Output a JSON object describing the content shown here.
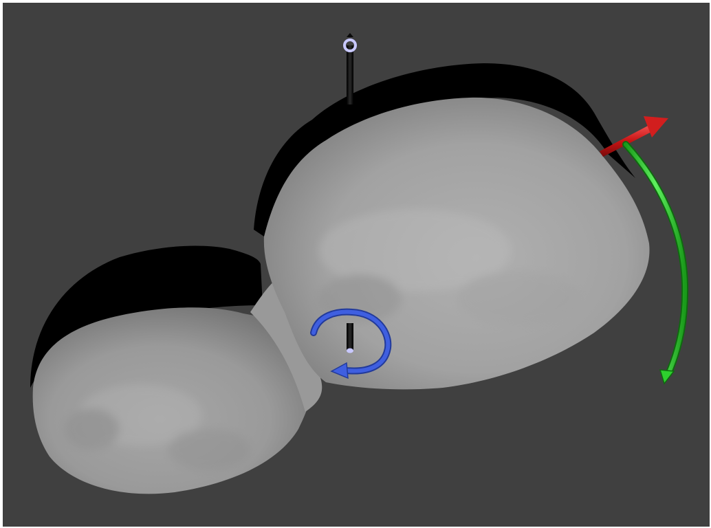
{
  "viewport": {
    "background_color": "#404040",
    "border_color": "#ffffff"
  },
  "object": {
    "kind": "contact-binary asteroid 3D model",
    "surface_color": "#a8a8a8",
    "shadow_color": "#000000"
  },
  "gizmos": {
    "spin_axis": {
      "icon": "axis-rod-icon",
      "color": "#0a0a0a",
      "cap_color": "#c8c8ff"
    },
    "rotation_arrow": {
      "icon": "circular-arrow-icon",
      "color": "#3f5fe0"
    },
    "center_axis": {
      "icon": "axis-rod-icon",
      "color": "#0a0a0a",
      "cap_color": "#c8c8ff"
    },
    "x_axis_arrow": {
      "icon": "arrow-icon",
      "color": "#d21e1e"
    },
    "curved_arrow": {
      "icon": "curved-arrow-icon",
      "color": "#2ed02e"
    }
  }
}
